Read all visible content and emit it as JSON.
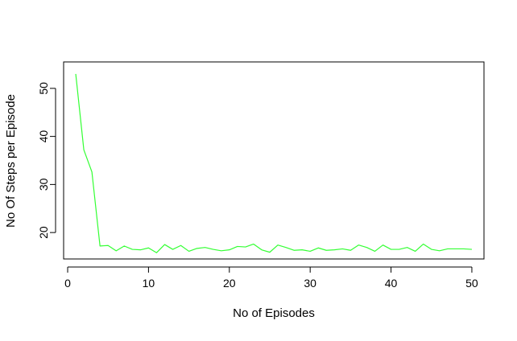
{
  "chart_data": {
    "type": "line",
    "title": "",
    "xlabel": "No of Episodes",
    "ylabel": "No Of Steps per Episode",
    "xlim": [
      -0.5,
      51.5
    ],
    "ylim": [
      14.5,
      55.5
    ],
    "xticks": [
      0,
      10,
      20,
      30,
      40,
      50
    ],
    "yticks": [
      20,
      30,
      40,
      50
    ],
    "grid": false,
    "legend": "none",
    "series": [
      {
        "color": "#33ff33",
        "x": [
          1,
          2,
          3,
          4,
          5,
          6,
          7,
          8,
          9,
          10,
          11,
          12,
          13,
          14,
          15,
          16,
          17,
          18,
          19,
          20,
          21,
          22,
          23,
          24,
          25,
          26,
          27,
          28,
          29,
          30,
          31,
          32,
          33,
          34,
          35,
          36,
          37,
          38,
          39,
          40,
          41,
          42,
          43,
          44,
          45,
          46,
          47,
          48,
          49,
          50
        ],
        "y": [
          53,
          37.2,
          32.6,
          17.2,
          17.3,
          16.2,
          17.2,
          16.5,
          16.4,
          16.8,
          15.8,
          17.5,
          16.5,
          17.3,
          16.1,
          16.7,
          16.9,
          16.5,
          16.2,
          16.4,
          17.1,
          17.0,
          17.6,
          16.4,
          15.9,
          17.4,
          16.9,
          16.3,
          16.4,
          16.1,
          16.8,
          16.3,
          16.4,
          16.6,
          16.3,
          17.4,
          16.9,
          16.1,
          17.4,
          16.5,
          16.5,
          16.9,
          16.1,
          17.6,
          16.5,
          16.2,
          16.6,
          16.6,
          16.6,
          16.5
        ]
      }
    ]
  }
}
